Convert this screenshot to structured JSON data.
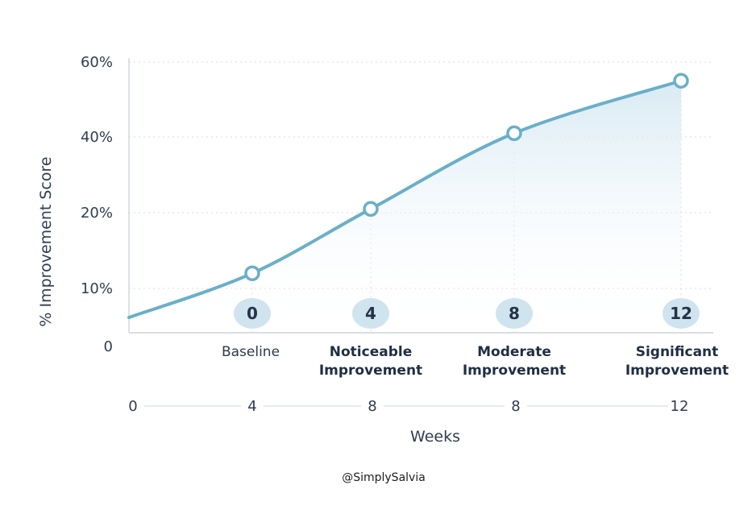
{
  "chart_data": {
    "type": "line",
    "ylabel": "% Improvement Score",
    "xlabel": "Weeks",
    "y_ticks": [
      "0",
      "10%",
      "20%",
      "40%",
      "60%"
    ],
    "points": [
      {
        "badge": "0",
        "stage": [
          "Baseline"
        ],
        "bold": false,
        "value": 12
      },
      {
        "badge": "4",
        "stage": [
          "Noticeable",
          "Improvement"
        ],
        "bold": true,
        "value": 21
      },
      {
        "badge": "8",
        "stage": [
          "Moderate",
          "Improvement"
        ],
        "bold": true,
        "value": 41
      },
      {
        "badge": "12",
        "stage": [
          "Significant",
          "Improvement"
        ],
        "bold": true,
        "value": 55
      }
    ],
    "start_value": 5,
    "week_ticks": [
      "0",
      "4",
      "8",
      "8",
      "12"
    ],
    "grid": true,
    "colors": {
      "line": "#6aafc9",
      "marker_fill": "#ffffff",
      "badge": "#cfe4ef",
      "area": "#e3f0f7"
    }
  },
  "credit": "@SimplySalvia"
}
